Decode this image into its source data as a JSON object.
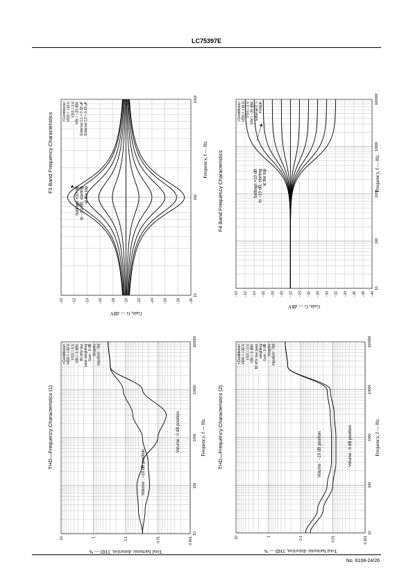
{
  "page": {
    "header": "LC75397E",
    "footer": "No. 6108-24/26"
  },
  "chart_data": [
    {
      "id": "f3",
      "type": "line",
      "title": "F3 Band Frequency Characteristics",
      "xlabel": "Frequency, f — Hz",
      "ylabel": "Gain, G — dBV",
      "xscale": "log",
      "xlim": [
        10,
        1000
      ],
      "ylim": [
        -30,
        -10
      ],
      "x_ticks": [
        "10",
        "100",
        "1000"
      ],
      "y_ticks": [
        "−10",
        "−12",
        "−14",
        "−16",
        "−18",
        "−20",
        "−22",
        "−24",
        "−26",
        "−28",
        "−30"
      ],
      "annotation": [
        "Settings +10 dB",
        "to −10 dB, starting",
        "at the top"
      ],
      "conditions": [
        "<Conditions>",
        "VDD = +10 V",
        "VSS = 0 V",
        "VIN = −20 dBV",
        "External C1 = 0.18 μF",
        "External C2 = 0.15 μF"
      ],
      "center_freq": 100,
      "series": [
        {
          "setting_db": 10,
          "peak": -11.0
        },
        {
          "setting_db": 8,
          "peak": -12.0
        },
        {
          "setting_db": 6,
          "peak": -13.9
        },
        {
          "setting_db": 4,
          "peak": -15.8
        },
        {
          "setting_db": 2,
          "peak": -17.9
        },
        {
          "setting_db": 0,
          "peak": -20.0
        },
        {
          "setting_db": -2,
          "peak": -22.0
        },
        {
          "setting_db": -4,
          "peak": -24.0
        },
        {
          "setting_db": -6,
          "peak": -26.0
        },
        {
          "setting_db": -8,
          "peak": -27.8
        },
        {
          "setting_db": -10,
          "peak": -29.0
        }
      ]
    },
    {
      "id": "f4",
      "type": "line",
      "title": "F4 Band Frequency Characteristics",
      "xlabel": "Frequency, f — Hz",
      "ylabel": "Gain, G — dBV",
      "xscale": "log",
      "xlim": [
        10,
        100000
      ],
      "ylim": [
        -40,
        -10
      ],
      "x_ticks": [
        "10",
        "100",
        "1000",
        "10000",
        "100000"
      ],
      "y_ticks": [
        "−10",
        "−12",
        "−14",
        "−16",
        "−18",
        "−20",
        "−22",
        "−24",
        "−26",
        "−28",
        "−30",
        "−32",
        "−34",
        "−36",
        "−38",
        "−40"
      ],
      "annotation": [
        "Settings +10 dB",
        "to −10 dB, starting",
        "at the top"
      ],
      "conditions": [
        "<Conditions>",
        "VDD = +10 V",
        "VSS = 0 V",
        "VIN = −20 dBV",
        "External C =",
        "4700pF"
      ],
      "series": [
        {
          "setting_db": 10,
          "high": -12
        },
        {
          "setting_db": 8,
          "high": -14
        },
        {
          "setting_db": 6,
          "high": -16
        },
        {
          "setting_db": 4,
          "high": -18
        },
        {
          "setting_db": 2,
          "high": -20
        },
        {
          "setting_db": 0,
          "high": -22
        },
        {
          "setting_db": -2,
          "high": -24
        },
        {
          "setting_db": -4,
          "high": -26
        },
        {
          "setting_db": -6,
          "high": -28
        },
        {
          "setting_db": -8,
          "high": -30
        },
        {
          "setting_db": -10,
          "high": -32
        }
      ]
    },
    {
      "id": "thd1",
      "type": "line",
      "title": "THD—Frequency Characteristics (1)",
      "xlabel": "Frequency, f — Hz",
      "ylabel": "Total harmonic distortion, THD — %",
      "xscale": "log",
      "yscale": "log",
      "xlim": [
        10,
        100000
      ],
      "ylim": [
        0.001,
        10
      ],
      "x_ticks": [
        "10",
        "100",
        "1000",
        "10000",
        "100000"
      ],
      "y_ticks": [
        "10",
        "1",
        "0.1",
        "0.01",
        "0.001"
      ],
      "conditions": [
        "<Conditions>",
        "VDD = +10 V",
        "VSS = 0 V",
        "VIN = 0 dBV",
        "80 kHz low",
        "pass weighting",
        "Gain : 0 dB",
        "Graphic",
        "equalizer : flat"
      ],
      "series": [
        {
          "name": "Volume : −10 dB position",
          "x": [
            10,
            30,
            100,
            300,
            1000,
            3000,
            10000,
            30000,
            100000
          ],
          "y": [
            0.03,
            0.025,
            0.018,
            0.02,
            0.03,
            0.06,
            0.12,
            0.3,
            0.35
          ]
        },
        {
          "name": "Volume : 0 dB position",
          "x": [
            10,
            30,
            100,
            300,
            1000,
            3000,
            10000,
            30000,
            100000
          ],
          "y": [
            0.03,
            0.04,
            0.045,
            0.03,
            0.01,
            0.0055,
            0.03,
            0.3,
            0.35
          ]
        }
      ]
    },
    {
      "id": "thd2",
      "type": "line",
      "title": "THD—Frequency Characteristics (2)",
      "xlabel": "Frequency, f — Hz",
      "ylabel": "Total harmonic distortion, THD — %",
      "xscale": "log",
      "yscale": "log",
      "xlim": [
        10,
        100000
      ],
      "ylim": [
        0.001,
        10
      ],
      "x_ticks": [
        "10",
        "100",
        "1000",
        "10000",
        "100000"
      ],
      "y_ticks": [
        "10",
        "1",
        "0.1",
        "0.01",
        "0.001"
      ],
      "conditions": [
        "<Conditions>",
        "VDD = +10 V",
        "VSS = 0 V",
        "VIN = 0 dBV",
        "80 kHz low pass",
        "weighting",
        "Gain : 0 dB",
        "Graphic",
        "equalizer : flat"
      ],
      "series": [
        {
          "name": "Volume : −10 dB position",
          "x": [
            10,
            30,
            100,
            300,
            1000,
            3000,
            10000,
            30000,
            100000
          ],
          "y": [
            0.07,
            0.03,
            0.015,
            0.011,
            0.011,
            0.012,
            0.015,
            0.25,
            0.3
          ]
        },
        {
          "name": "Volume : 0 dB position",
          "x": [
            10,
            30,
            100,
            300,
            1000,
            3000,
            10000,
            30000,
            100000
          ],
          "y": [
            0.05,
            0.02,
            0.01,
            0.008,
            0.008,
            0.009,
            0.012,
            0.25,
            0.3
          ]
        }
      ]
    }
  ]
}
